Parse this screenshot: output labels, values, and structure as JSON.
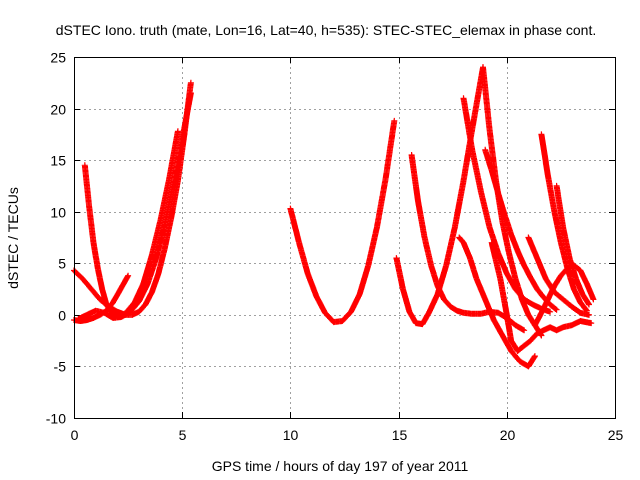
{
  "chart_data": {
    "type": "scatter",
    "title": "dSTEC Iono. truth (mate, Lon=16, Lat=40, h=535): STEC-STEC_elemax in phase cont.",
    "xlabel": "GPS time / hours of day 197 of year 2011",
    "ylabel": "dSTEC  / TECUs",
    "xlim": [
      0,
      25
    ],
    "ylim": [
      -10,
      25
    ],
    "xticks": [
      0,
      5,
      10,
      15,
      20,
      25
    ],
    "yticks": [
      -10,
      -5,
      0,
      5,
      10,
      15,
      20,
      25
    ],
    "grid": true,
    "marker": "plus",
    "color": "#ff0000",
    "series": [
      {
        "x": [
          0.0,
          0.4,
          0.8,
          1.2,
          1.6,
          2.0,
          2.4,
          2.7,
          3.0,
          3.3,
          3.6,
          3.9,
          4.2,
          4.5,
          4.8,
          5.1,
          5.4
        ],
        "y": [
          4.3,
          3.5,
          2.5,
          1.5,
          0.8,
          0.3,
          0.0,
          0.0,
          0.3,
          1.0,
          2.2,
          4.0,
          6.5,
          9.5,
          13.0,
          17.5,
          22.5
        ]
      },
      {
        "x": [
          0.0,
          0.3,
          0.6,
          0.9,
          1.2,
          1.5,
          1.8,
          2.1,
          2.5
        ],
        "y": [
          -0.5,
          -0.6,
          -0.5,
          -0.3,
          0.0,
          0.4,
          1.2,
          2.3,
          3.8
        ]
      },
      {
        "x": [
          0.5,
          0.7,
          0.9,
          1.1,
          1.3,
          1.5,
          1.8,
          2.1,
          2.4,
          2.8,
          3.2,
          3.6,
          4.0,
          4.4,
          4.8
        ],
        "y": [
          14.5,
          10.5,
          7.0,
          4.5,
          2.5,
          1.0,
          0.0,
          -0.2,
          0.2,
          1.2,
          3.0,
          5.8,
          9.2,
          13.2,
          17.8
        ]
      },
      {
        "x": [
          0.2,
          0.6,
          1.0,
          1.4,
          1.8,
          2.2,
          2.6,
          3.0,
          3.4,
          3.8,
          4.2,
          4.6,
          5.0,
          5.4
        ],
        "y": [
          -0.4,
          0.0,
          0.4,
          0.2,
          -0.3,
          -0.2,
          0.3,
          1.3,
          3.0,
          5.5,
          8.8,
          12.8,
          17.0,
          21.5
        ]
      },
      {
        "x": [
          10.0,
          10.4,
          10.8,
          11.2,
          11.6,
          12.0,
          12.4,
          12.8,
          13.2,
          13.6,
          14.0,
          14.4,
          14.8
        ],
        "y": [
          10.3,
          7.0,
          4.0,
          1.8,
          0.2,
          -0.7,
          -0.6,
          0.3,
          2.0,
          4.8,
          8.5,
          13.2,
          18.8
        ]
      },
      {
        "x": [
          14.9,
          15.2,
          15.5,
          15.8,
          16.1,
          16.4,
          16.8,
          17.2,
          17.6,
          18.0,
          18.4,
          18.9
        ],
        "y": [
          5.5,
          2.5,
          0.3,
          -0.8,
          -0.9,
          0.2,
          2.0,
          4.8,
          8.5,
          13.0,
          18.0,
          24.0
        ]
      },
      {
        "x": [
          15.6,
          15.9,
          16.2,
          16.5,
          16.8,
          17.1,
          17.4,
          17.7,
          18.0,
          18.4,
          18.8,
          19.2,
          19.6,
          20.0,
          20.4,
          20.8
        ],
        "y": [
          15.5,
          11.0,
          7.5,
          4.8,
          2.8,
          1.5,
          0.8,
          0.4,
          0.2,
          0.1,
          0.1,
          0.3,
          0.2,
          -0.3,
          -1.0,
          -1.5
        ]
      },
      {
        "x": [
          17.8,
          18.0,
          18.3,
          18.6,
          19.0,
          19.4,
          19.8,
          20.2,
          20.6,
          21.0,
          21.3
        ],
        "y": [
          7.5,
          7.0,
          5.5,
          3.5,
          1.5,
          -0.5,
          -2.0,
          -3.5,
          -4.5,
          -5.0,
          -4.0
        ]
      },
      {
        "x": [
          18.0,
          18.4,
          18.8,
          19.2,
          19.6,
          20.0,
          20.4,
          20.8,
          21.2,
          21.6,
          22.0
        ],
        "y": [
          21.0,
          16.0,
          12.0,
          8.5,
          6.0,
          4.0,
          2.5,
          1.5,
          1.0,
          0.6,
          0.3
        ]
      },
      {
        "x": [
          18.9,
          19.2,
          19.5,
          19.8,
          20.1,
          20.4,
          20.7,
          21.0,
          21.3,
          21.6
        ],
        "y": [
          24.0,
          18.0,
          13.0,
          9.0,
          6.0,
          3.5,
          1.5,
          0.0,
          -1.0,
          -2.0
        ]
      },
      {
        "x": [
          19.0,
          19.3,
          19.6,
          19.9,
          20.2,
          20.5,
          20.8,
          21.1,
          21.4,
          21.7,
          22.0,
          22.3
        ],
        "y": [
          16.0,
          14.0,
          11.8,
          9.7,
          7.8,
          6.2,
          4.8,
          3.6,
          2.5,
          1.7,
          1.0,
          0.5
        ]
      },
      {
        "x": [
          19.3,
          19.7,
          20.0,
          20.2,
          20.5,
          20.8,
          21.1,
          21.4,
          21.7,
          22.0,
          22.3,
          22.6,
          23.0,
          23.4,
          23.9
        ],
        "y": [
          7.0,
          3.5,
          0.0,
          -2.5,
          -3.5,
          -3.0,
          -2.5,
          -1.8,
          -1.5,
          -1.2,
          -1.5,
          -1.2,
          -1.0,
          -0.6,
          -0.8
        ]
      },
      {
        "x": [
          21.6,
          21.9,
          22.2,
          22.5,
          22.8,
          23.1,
          23.4,
          23.7
        ],
        "y": [
          17.5,
          13.5,
          10.0,
          7.0,
          4.5,
          2.5,
          1.2,
          0.4
        ]
      },
      {
        "x": [
          21.0,
          21.4,
          21.8,
          22.2,
          22.6,
          23.0,
          23.4,
          23.8
        ],
        "y": [
          7.5,
          5.5,
          3.5,
          2.2,
          1.5,
          0.8,
          0.2,
          0.0
        ]
      },
      {
        "x": [
          21.3,
          21.6,
          21.9,
          22.2,
          22.5,
          22.8,
          23.1,
          23.4,
          23.7,
          24.0
        ],
        "y": [
          -1.0,
          0.2,
          1.5,
          2.8,
          3.8,
          4.5,
          4.8,
          4.3,
          3.0,
          1.5
        ]
      },
      {
        "x": [
          22.3,
          22.6,
          22.9,
          23.2,
          23.5,
          23.8
        ],
        "y": [
          12.5,
          8.5,
          5.5,
          3.5,
          2.0,
          1.0
        ]
      }
    ]
  }
}
